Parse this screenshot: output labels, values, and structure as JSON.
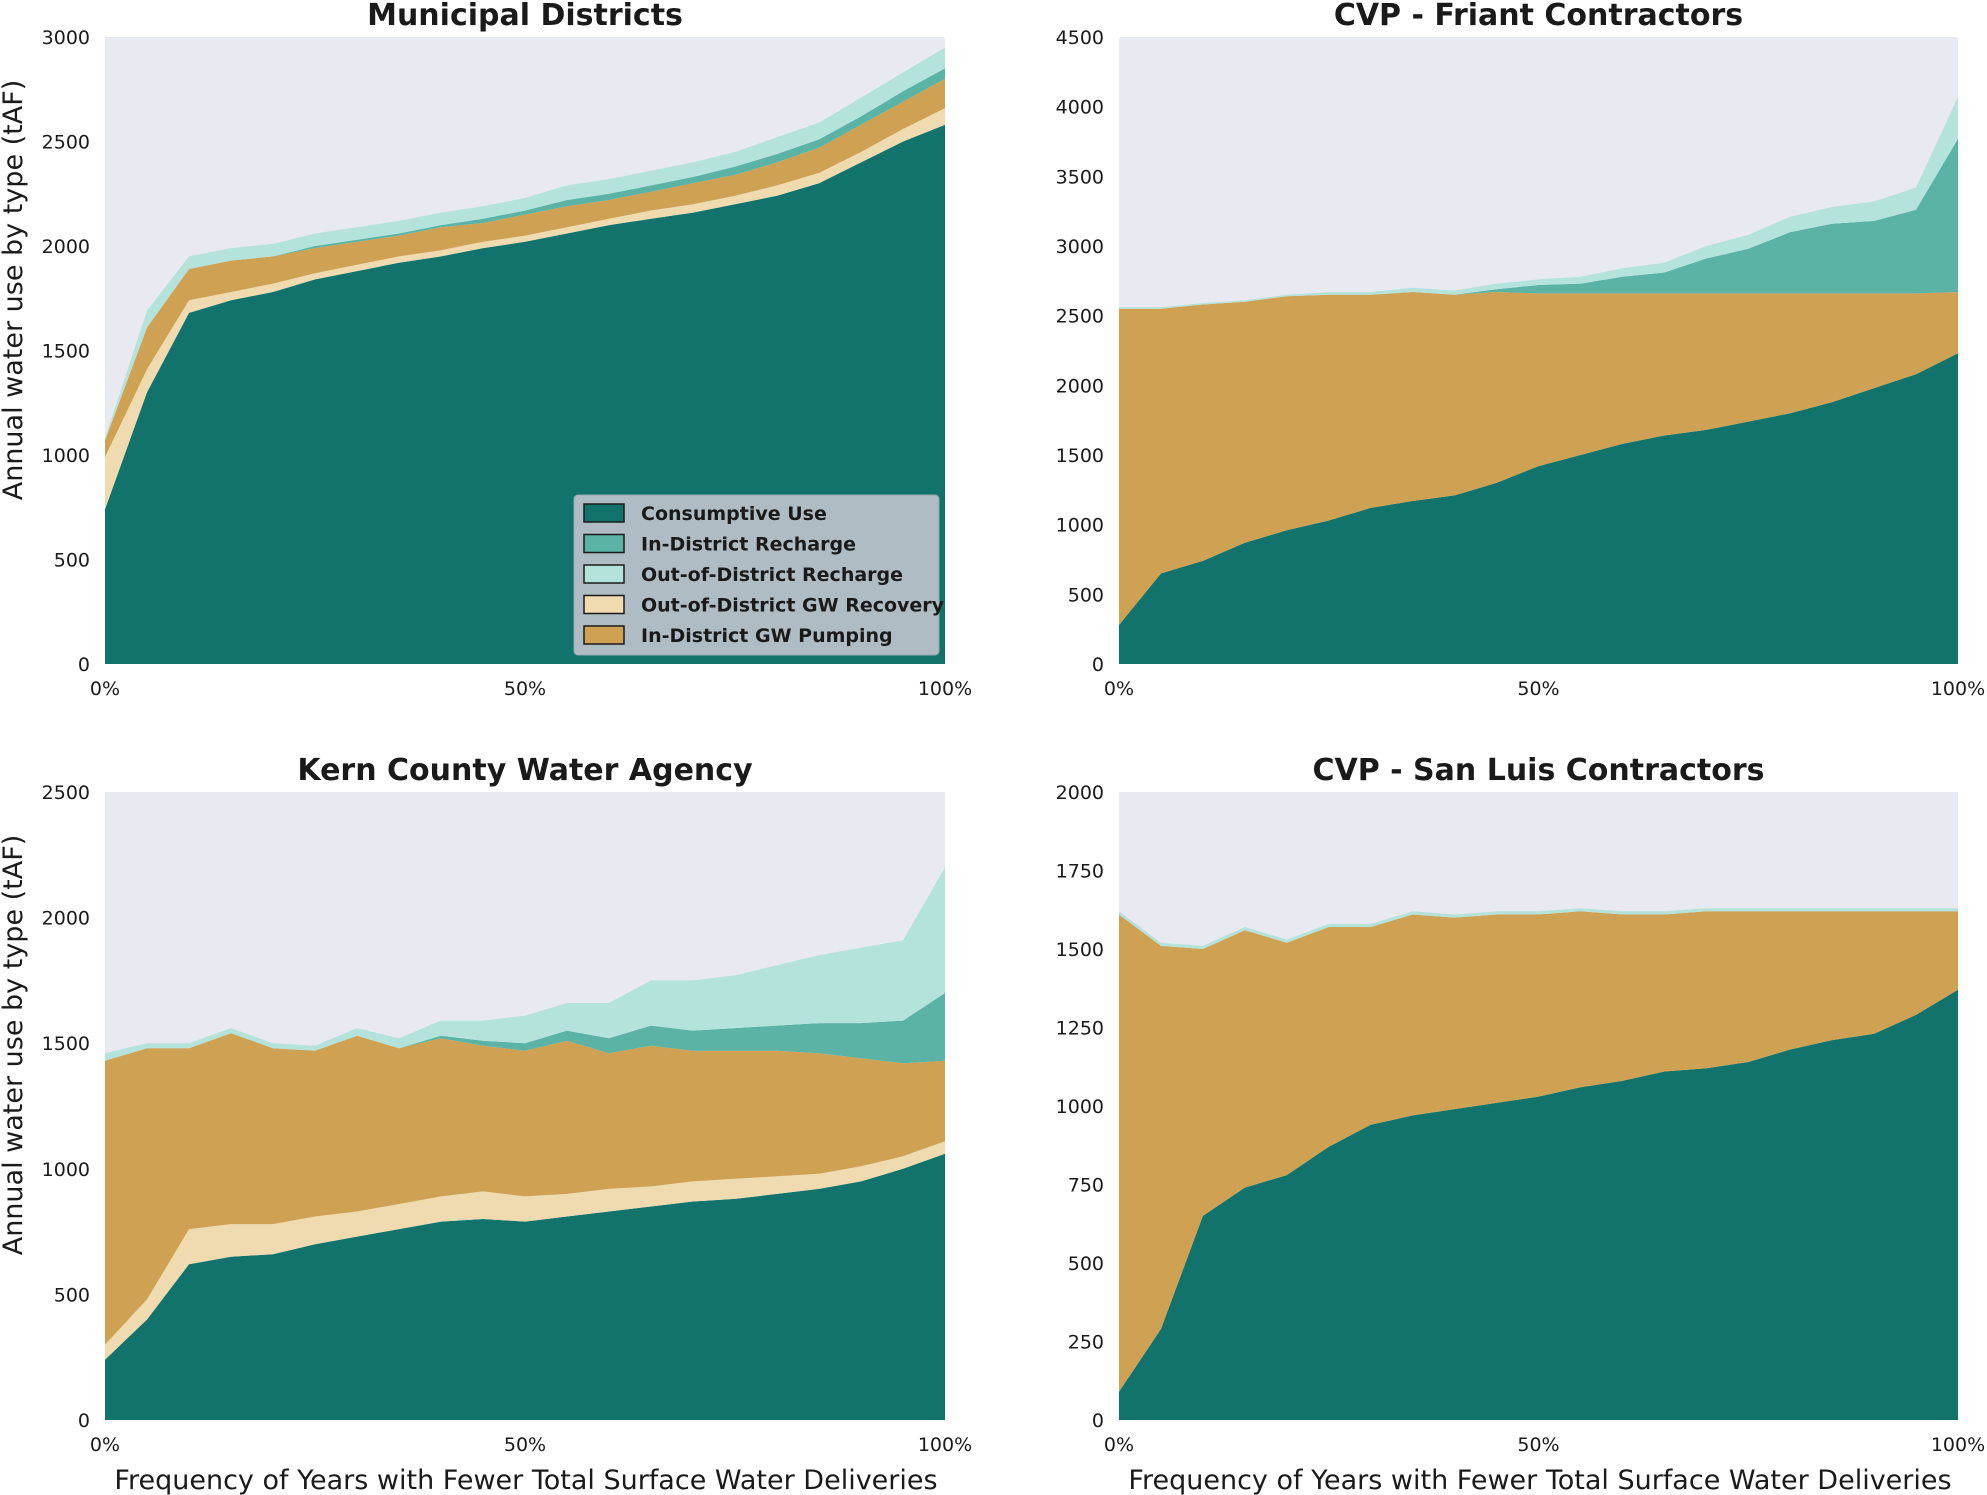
{
  "figure": {
    "ylabel": "Annual water use by type (tAF)",
    "xlabel": "Frequency of Years with Fewer Total Surface Water Deliveries",
    "xticks": [
      "0%",
      "50%",
      "100%"
    ]
  },
  "legend": {
    "placement": "lower-right of first panel",
    "items": [
      {
        "label": "Consumptive Use",
        "color": "#11736b"
      },
      {
        "label": "In-District Recharge",
        "color": "#5bb3a6"
      },
      {
        "label": "Out-of-District Recharge",
        "color": "#b4e3dc"
      },
      {
        "label": "Out-of-District GW Recovery",
        "color": "#efdbaf"
      },
      {
        "label": "In-District GW Pumping",
        "color": "#cfa253"
      }
    ]
  },
  "colors": {
    "plot_background": "#e9e9f1",
    "consumptive": "#11736b",
    "in_recharge": "#5bb3a6",
    "out_recharge": "#b4e3dc",
    "out_recovery": "#efdbaf",
    "in_pumping": "#cfa253"
  },
  "chart_data": [
    {
      "type": "area",
      "stacked": true,
      "title": "Municipal Districts",
      "ylim": [
        0,
        3000
      ],
      "yticks": [
        0,
        500,
        1000,
        1500,
        2000,
        2500,
        3000
      ],
      "xlim": [
        0,
        100
      ],
      "x": [
        0,
        5,
        10,
        15,
        20,
        25,
        30,
        35,
        40,
        45,
        50,
        55,
        60,
        65,
        70,
        75,
        80,
        85,
        90,
        95,
        100
      ],
      "series": [
        {
          "name": "Consumptive Use",
          "values": [
            740,
            1300,
            1680,
            1740,
            1780,
            1840,
            1880,
            1920,
            1950,
            1990,
            2020,
            2060,
            2100,
            2130,
            2160,
            2200,
            2240,
            2300,
            2400,
            2500,
            2580
          ]
        },
        {
          "name": "Out-of-District GW Recovery",
          "values": [
            250,
            110,
            60,
            40,
            40,
            30,
            30,
            30,
            30,
            30,
            30,
            30,
            30,
            40,
            40,
            40,
            50,
            50,
            50,
            60,
            80
          ]
        },
        {
          "name": "In-District GW Pumping",
          "values": [
            80,
            200,
            150,
            150,
            130,
            120,
            110,
            100,
            110,
            90,
            100,
            100,
            90,
            90,
            100,
            100,
            110,
            120,
            130,
            130,
            140
          ]
        },
        {
          "name": "In-District Recharge",
          "values": [
            0,
            0,
            0,
            0,
            0,
            10,
            10,
            10,
            10,
            20,
            20,
            30,
            30,
            30,
            30,
            40,
            40,
            40,
            40,
            50,
            50
          ]
        },
        {
          "name": "Out-of-District Recharge",
          "values": [
            10,
            80,
            60,
            60,
            60,
            60,
            60,
            60,
            60,
            60,
            60,
            70,
            70,
            70,
            70,
            70,
            80,
            80,
            90,
            90,
            100
          ]
        }
      ]
    },
    {
      "type": "area",
      "stacked": true,
      "title": "CVP - Friant Contractors",
      "ylim": [
        0,
        4500
      ],
      "yticks": [
        0,
        500,
        1000,
        1500,
        2000,
        2500,
        3000,
        3500,
        4000,
        4500
      ],
      "xlim": [
        0,
        100
      ],
      "x": [
        0,
        5,
        10,
        15,
        20,
        25,
        30,
        35,
        40,
        45,
        50,
        55,
        60,
        65,
        70,
        75,
        80,
        85,
        90,
        95,
        100
      ],
      "series": [
        {
          "name": "Consumptive Use",
          "values": [
            280,
            650,
            740,
            870,
            960,
            1030,
            1120,
            1170,
            1210,
            1300,
            1420,
            1500,
            1580,
            1640,
            1680,
            1740,
            1800,
            1880,
            1980,
            2080,
            2230
          ]
        },
        {
          "name": "Out-of-District GW Recovery",
          "values": [
            0,
            0,
            0,
            0,
            0,
            0,
            0,
            0,
            0,
            0,
            0,
            0,
            0,
            0,
            0,
            0,
            0,
            0,
            0,
            0,
            0
          ]
        },
        {
          "name": "In-District GW Pumping",
          "values": [
            2270,
            1900,
            1840,
            1730,
            1680,
            1620,
            1530,
            1500,
            1440,
            1370,
            1240,
            1160,
            1080,
            1020,
            980,
            920,
            860,
            780,
            680,
            580,
            440
          ]
        },
        {
          "name": "In-District Recharge",
          "values": [
            0,
            0,
            0,
            0,
            0,
            0,
            0,
            0,
            0,
            20,
            60,
            70,
            120,
            150,
            250,
            320,
            440,
            500,
            520,
            600,
            1100
          ]
        },
        {
          "name": "Out-of-District Recharge",
          "values": [
            10,
            10,
            10,
            10,
            10,
            20,
            20,
            30,
            30,
            40,
            40,
            50,
            60,
            70,
            90,
            100,
            110,
            120,
            140,
            160,
            300
          ]
        }
      ]
    },
    {
      "type": "area",
      "stacked": true,
      "title": "Kern County Water Agency",
      "ylim": [
        0,
        2500
      ],
      "yticks": [
        0,
        500,
        1000,
        1500,
        2000,
        2500
      ],
      "xlim": [
        0,
        100
      ],
      "x": [
        0,
        5,
        10,
        15,
        20,
        25,
        30,
        35,
        40,
        45,
        50,
        55,
        60,
        65,
        70,
        75,
        80,
        85,
        90,
        95,
        100
      ],
      "series": [
        {
          "name": "Consumptive Use",
          "values": [
            240,
            400,
            620,
            650,
            660,
            700,
            730,
            760,
            790,
            800,
            790,
            810,
            830,
            850,
            870,
            880,
            900,
            920,
            950,
            1000,
            1060
          ]
        },
        {
          "name": "Out-of-District GW Recovery",
          "values": [
            60,
            80,
            140,
            130,
            120,
            110,
            100,
            100,
            100,
            110,
            100,
            90,
            90,
            80,
            80,
            80,
            70,
            60,
            60,
            50,
            50
          ]
        },
        {
          "name": "In-District GW Pumping",
          "values": [
            1130,
            1000,
            720,
            760,
            700,
            660,
            700,
            620,
            630,
            580,
            580,
            610,
            540,
            560,
            520,
            510,
            500,
            480,
            430,
            370,
            320
          ]
        },
        {
          "name": "In-District Recharge",
          "values": [
            0,
            0,
            0,
            0,
            0,
            0,
            0,
            0,
            10,
            20,
            30,
            40,
            60,
            80,
            80,
            90,
            100,
            120,
            140,
            170,
            270
          ]
        },
        {
          "name": "Out-of-District Recharge",
          "values": [
            30,
            20,
            20,
            20,
            20,
            20,
            30,
            40,
            60,
            80,
            110,
            110,
            140,
            180,
            200,
            210,
            240,
            270,
            300,
            320,
            500
          ]
        }
      ]
    },
    {
      "type": "area",
      "stacked": true,
      "title": "CVP - San Luis Contractors",
      "ylim": [
        0,
        2000
      ],
      "yticks": [
        0,
        250,
        500,
        750,
        1000,
        1250,
        1500,
        1750,
        2000
      ],
      "xlim": [
        0,
        100
      ],
      "x": [
        0,
        5,
        10,
        15,
        20,
        25,
        30,
        35,
        40,
        45,
        50,
        55,
        60,
        65,
        70,
        75,
        80,
        85,
        90,
        95,
        100
      ],
      "series": [
        {
          "name": "Consumptive Use",
          "values": [
            90,
            290,
            650,
            740,
            780,
            870,
            940,
            970,
            990,
            1010,
            1030,
            1060,
            1080,
            1110,
            1120,
            1140,
            1180,
            1210,
            1230,
            1290,
            1370
          ]
        },
        {
          "name": "Out-of-District GW Recovery",
          "values": [
            0,
            0,
            0,
            0,
            0,
            0,
            0,
            0,
            0,
            0,
            0,
            0,
            0,
            0,
            0,
            0,
            0,
            0,
            0,
            0,
            0
          ]
        },
        {
          "name": "In-District GW Pumping",
          "values": [
            1520,
            1220,
            850,
            820,
            740,
            700,
            630,
            640,
            610,
            600,
            580,
            560,
            530,
            500,
            500,
            480,
            440,
            410,
            390,
            330,
            250
          ]
        },
        {
          "name": "In-District Recharge",
          "values": [
            0,
            0,
            0,
            0,
            0,
            0,
            0,
            0,
            0,
            0,
            0,
            0,
            0,
            0,
            0,
            0,
            0,
            0,
            0,
            0,
            0
          ]
        },
        {
          "name": "Out-of-District Recharge",
          "values": [
            10,
            10,
            10,
            10,
            10,
            10,
            10,
            10,
            10,
            10,
            10,
            10,
            10,
            10,
            10,
            10,
            10,
            10,
            10,
            10,
            10
          ]
        }
      ]
    }
  ]
}
